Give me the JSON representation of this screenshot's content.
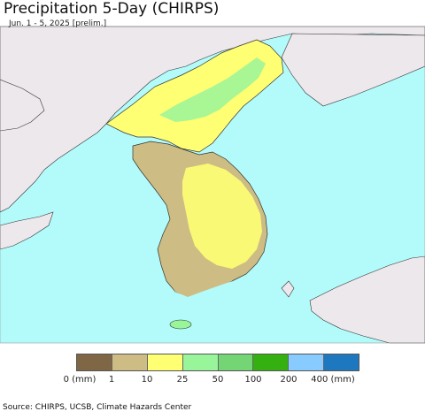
{
  "header": {
    "title": "Precipitation 5-Day (CHIRPS)",
    "subtitle": "Jun. 1 - 5, 2025 [prelim.]"
  },
  "map": {
    "ocean_color": "#b3fbfb",
    "land_outside_color": "#ede8ec",
    "border_color": "#333333",
    "region_colors": {
      "north_korea": "#ffff73",
      "north_korea_mountains": "#99f59a",
      "south_west_plains": "#cdbd84",
      "south_korea": "#ffff73",
      "south_coast": "#cdbd84"
    }
  },
  "legend": {
    "swatches": [
      {
        "color": "#7f6644",
        "label": "0 (mm)"
      },
      {
        "color": "#cdbd84",
        "label": "1"
      },
      {
        "color": "#ffff73",
        "label": "10"
      },
      {
        "color": "#99f59a",
        "label": "25"
      },
      {
        "color": "#74d574",
        "label": "50"
      },
      {
        "color": "#34b110",
        "label": "100"
      },
      {
        "color": "#88ccff",
        "label": "200"
      },
      {
        "color": "#1e78c0",
        "label": "400 (mm)"
      }
    ]
  },
  "footer": {
    "source": "Source: CHIRPS, UCSB, Climate Hazards Center"
  }
}
